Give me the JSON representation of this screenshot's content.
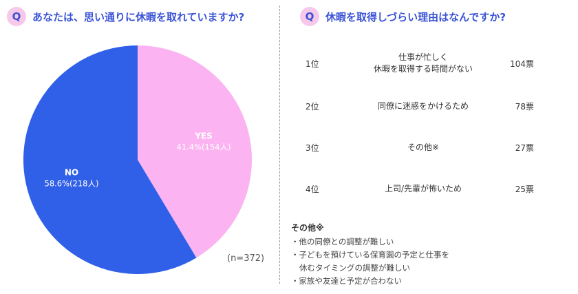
{
  "left": {
    "badge": "Q",
    "title": "あなたは、思い通りに休暇を取れていますか?",
    "n_label": "(n=372)"
  },
  "chart_data": {
    "type": "pie",
    "title": "あなたは、思い通りに休暇を取れていますか?",
    "slices": [
      {
        "label": "YES",
        "percent": 41.4,
        "count": 154,
        "pct_text": "41.4%(154人)",
        "color": "#fbb4f1"
      },
      {
        "label": "NO",
        "percent": 58.6,
        "count": 218,
        "pct_text": "58.6%(218人)",
        "color": "#3160e8"
      }
    ],
    "n": 372
  },
  "right": {
    "badge": "Q",
    "title": "休暇を取得しづらい理由はなんですか?",
    "ranking": [
      {
        "rank": "1位",
        "reason_lines": [
          "仕事が忙しく",
          "休暇を取得する時間がない"
        ],
        "votes": "104票"
      },
      {
        "rank": "2位",
        "reason_lines": [
          "同僚に迷惑をかけるため"
        ],
        "votes": "78票"
      },
      {
        "rank": "3位",
        "reason_lines": [
          "その他※"
        ],
        "votes": "27票"
      },
      {
        "rank": "4位",
        "reason_lines": [
          "上司/先輩が怖いため"
        ],
        "votes": "25票"
      }
    ],
    "other": {
      "title": "その他※",
      "items": [
        {
          "lines": [
            "・他の同僚との調整が難しい"
          ]
        },
        {
          "lines": [
            "・子どもを預けている保育園の予定と仕事を",
            "休むタイミングの調整が難しい"
          ]
        },
        {
          "lines": [
            "・家族や友達と予定が合わない"
          ]
        }
      ]
    }
  }
}
